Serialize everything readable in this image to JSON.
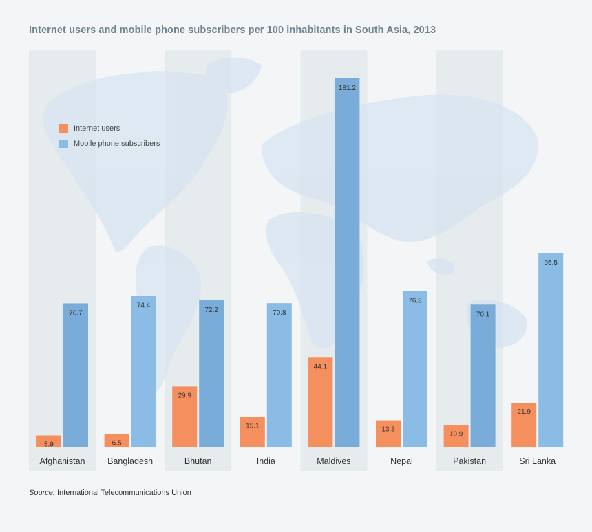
{
  "chart_data": {
    "type": "bar",
    "title": "Internet users and mobile phone subscribers per 100 inhabitants in South Asia, 2013",
    "categories": [
      "Afghanistan",
      "Bangladesh",
      "Bhutan",
      "India",
      "Maldives",
      "Nepal",
      "Pakistan",
      "Sri Lanka"
    ],
    "series": [
      {
        "name": "Internet users",
        "values": [
          5.9,
          6.5,
          29.9,
          15.1,
          44.1,
          13.3,
          10.9,
          21.9
        ]
      },
      {
        "name": "Mobile phone subscribers",
        "values": [
          70.7,
          74.4,
          72.2,
          70.8,
          181.2,
          76.8,
          70.1,
          95.5
        ]
      }
    ],
    "xlabel": "",
    "ylabel": "",
    "ylim": [
      0,
      181.2
    ],
    "legend_position": "top-left"
  },
  "colors": {
    "internet": "#f58f5e",
    "mobile": "#8bbce5",
    "mobile_shaded": "#79acd8",
    "column_shade": "#e6ebee",
    "map": "#d7e4f1",
    "title": "#6e8591"
  },
  "source": {
    "label": "Source:",
    "text": "International Telecommunications Union"
  }
}
